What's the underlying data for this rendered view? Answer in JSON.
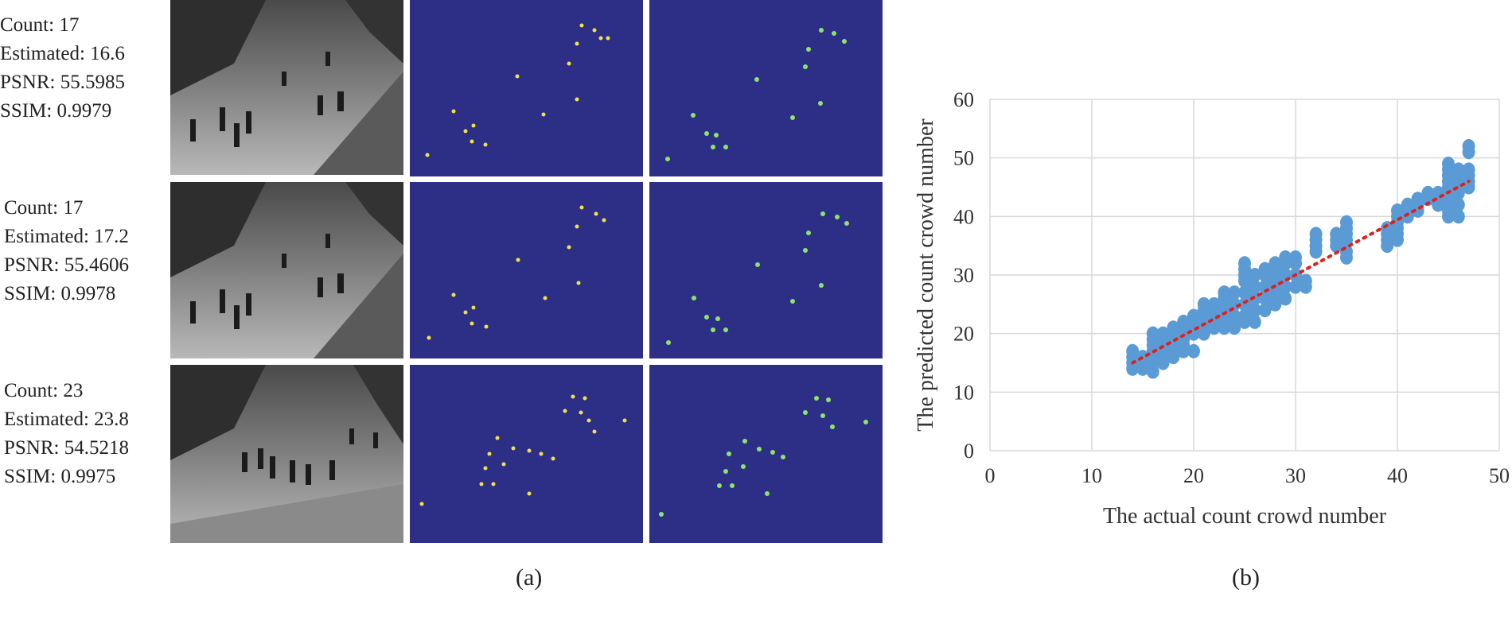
{
  "colors": {
    "density_bg": "#2d2f87",
    "point_blue": "#5b9bd5",
    "trend_red": "#e0201b",
    "grid": "#d9d9d9"
  },
  "panels": [
    {
      "count": "Count: 17",
      "estimated": "Estimated: 16.6",
      "psnr": "PSNR: 55.5985",
      "ssim": "SSIM: 0.9979"
    },
    {
      "count": "Count: 17",
      "estimated": "Estimated: 17.2",
      "psnr": "PSNR: 55.4606",
      "ssim": "SSIM: 0.9978"
    },
    {
      "count": "Count: 23",
      "estimated": "Estimated: 23.8",
      "psnr": "PSNR: 54.5218",
      "ssim": "SSIM: 0.9975"
    }
  ],
  "captions": {
    "a": "(a)",
    "b": "(b)"
  },
  "chart_data": {
    "type": "scatter",
    "xlabel": "The actual count crowd number",
    "ylabel": "The predicted count crowd number",
    "xlim": [
      0,
      50
    ],
    "ylim": [
      0,
      60
    ],
    "xticks": [
      "0",
      "10",
      "20",
      "30",
      "40",
      "50"
    ],
    "yticks": [
      "0",
      "10",
      "20",
      "30",
      "40",
      "50",
      "60"
    ],
    "grid": true,
    "trendline": {
      "style": "dotted",
      "x": [
        14,
        47
      ],
      "y": [
        15,
        46
      ]
    },
    "series": [
      {
        "points": [
          [
            14,
            14
          ],
          [
            14,
            15
          ],
          [
            14,
            16
          ],
          [
            14,
            17
          ],
          [
            15,
            14
          ],
          [
            15,
            15
          ],
          [
            15,
            16
          ],
          [
            16,
            13.5
          ],
          [
            16,
            15
          ],
          [
            16,
            16
          ],
          [
            16,
            17
          ],
          [
            16,
            18
          ],
          [
            16,
            19
          ],
          [
            16,
            20
          ],
          [
            17,
            15
          ],
          [
            17,
            16
          ],
          [
            17,
            17
          ],
          [
            17,
            18
          ],
          [
            17,
            19
          ],
          [
            17,
            20
          ],
          [
            18,
            16
          ],
          [
            18,
            17
          ],
          [
            18,
            18
          ],
          [
            18,
            19
          ],
          [
            18,
            20
          ],
          [
            18,
            21
          ],
          [
            19,
            17
          ],
          [
            19,
            18
          ],
          [
            19,
            19
          ],
          [
            19,
            20
          ],
          [
            19,
            21
          ],
          [
            19,
            22
          ],
          [
            20,
            17
          ],
          [
            20,
            20
          ],
          [
            20,
            21
          ],
          [
            20,
            22
          ],
          [
            20,
            23
          ],
          [
            21,
            20
          ],
          [
            21,
            21
          ],
          [
            21,
            22
          ],
          [
            21,
            23
          ],
          [
            21,
            24
          ],
          [
            21,
            25
          ],
          [
            22,
            21
          ],
          [
            22,
            22
          ],
          [
            22,
            23
          ],
          [
            22,
            24
          ],
          [
            22,
            25
          ],
          [
            23,
            21
          ],
          [
            23,
            22
          ],
          [
            23,
            23
          ],
          [
            23,
            24
          ],
          [
            23,
            25
          ],
          [
            23,
            26
          ],
          [
            23,
            27
          ],
          [
            24,
            21
          ],
          [
            24,
            22
          ],
          [
            24,
            23
          ],
          [
            24,
            25
          ],
          [
            24,
            27
          ],
          [
            25,
            22
          ],
          [
            25,
            23
          ],
          [
            25,
            25
          ],
          [
            25,
            27
          ],
          [
            25,
            29
          ],
          [
            25,
            30
          ],
          [
            25,
            31
          ],
          [
            25,
            32
          ],
          [
            26,
            22
          ],
          [
            26,
            24
          ],
          [
            26,
            26
          ],
          [
            26,
            28
          ],
          [
            26,
            30
          ],
          [
            27,
            24
          ],
          [
            27,
            26
          ],
          [
            27,
            28
          ],
          [
            27,
            30
          ],
          [
            27,
            31
          ],
          [
            28,
            25
          ],
          [
            28,
            27
          ],
          [
            28,
            29
          ],
          [
            28,
            31
          ],
          [
            28,
            32
          ],
          [
            29,
            26
          ],
          [
            29,
            28
          ],
          [
            29,
            30
          ],
          [
            29,
            32
          ],
          [
            29,
            33
          ],
          [
            30,
            28
          ],
          [
            30,
            30
          ],
          [
            30,
            32
          ],
          [
            30,
            33
          ],
          [
            31,
            28
          ],
          [
            31,
            29
          ],
          [
            32,
            34
          ],
          [
            32,
            35
          ],
          [
            32,
            36
          ],
          [
            32,
            37
          ],
          [
            34,
            35
          ],
          [
            34,
            36
          ],
          [
            34,
            37
          ],
          [
            35,
            33
          ],
          [
            35,
            34
          ],
          [
            35,
            36
          ],
          [
            35,
            37
          ],
          [
            35,
            38
          ],
          [
            35,
            39
          ],
          [
            39,
            35
          ],
          [
            39,
            36
          ],
          [
            39,
            37
          ],
          [
            39,
            38
          ],
          [
            40,
            36
          ],
          [
            40,
            37
          ],
          [
            40,
            38
          ],
          [
            40,
            39
          ],
          [
            40,
            40
          ],
          [
            40,
            41
          ],
          [
            41,
            40
          ],
          [
            41,
            41
          ],
          [
            41,
            42
          ],
          [
            42,
            41
          ],
          [
            42,
            42
          ],
          [
            42,
            43
          ],
          [
            43,
            43
          ],
          [
            43,
            44
          ],
          [
            44,
            42
          ],
          [
            44,
            43
          ],
          [
            44,
            44
          ],
          [
            45,
            40
          ],
          [
            45,
            41
          ],
          [
            45,
            42
          ],
          [
            45,
            43
          ],
          [
            45,
            44
          ],
          [
            45,
            45
          ],
          [
            45,
            46
          ],
          [
            45,
            47
          ],
          [
            45,
            48
          ],
          [
            45,
            49
          ],
          [
            46,
            40
          ],
          [
            46,
            42
          ],
          [
            46,
            44
          ],
          [
            46,
            46
          ],
          [
            46,
            48
          ],
          [
            47,
            45
          ],
          [
            47,
            46
          ],
          [
            47,
            47
          ],
          [
            47,
            48
          ],
          [
            47,
            51
          ],
          [
            47,
            52
          ]
        ]
      }
    ]
  }
}
